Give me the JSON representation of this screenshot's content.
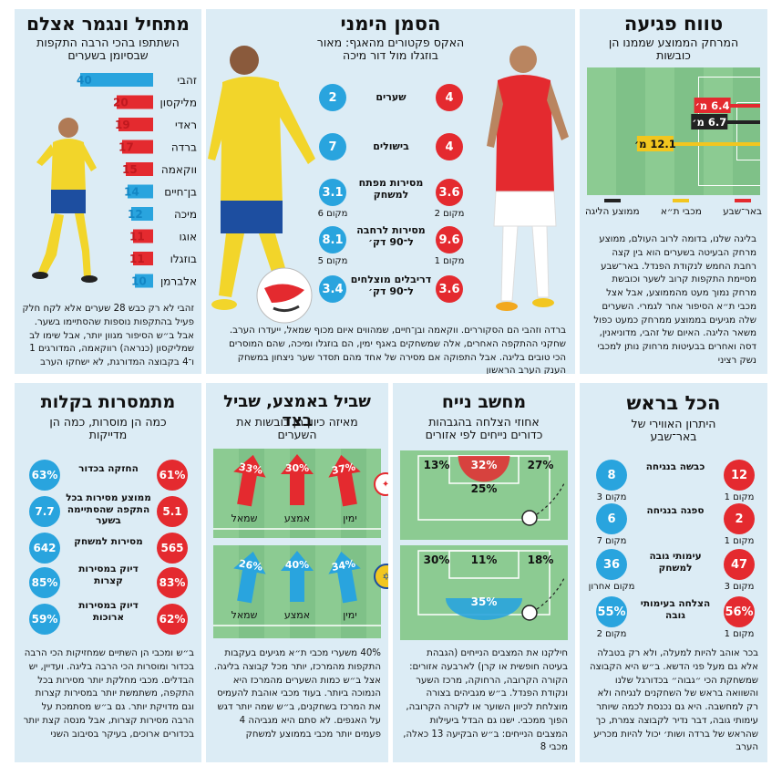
{
  "colors": {
    "red": "#e42a2f",
    "blue": "#29a4de",
    "yellow": "#f2c61f",
    "black": "#222222",
    "panel": "#dcecf5",
    "grass": "#7fc188"
  },
  "p1": {
    "title": "מתחיל ונגמר אצלם",
    "subtitle": "השתתפו בהכי הרבה התקפות שבסיומן בשערים",
    "text": "זהבי לא רק כבש 28 שערים אלא לקח חלק פעיל בהתקפות נוספות שהסתיימו בשער. אבל ב״ש הסיפור מגוון יותר, אבל שימו לב שמליקסון (כנראה) רווקאמה, המדורגים 1 ו־4 בקבוצה המדורגת, לא ישחקו הערב"
  },
  "p2": {
    "title": "הסמן הימני",
    "subtitle": "האקס פקטורים מהאגף: מאור בוזגלו מול דור מיכה",
    "stats": [
      {
        "label": "שערים",
        "red": "4",
        "blue": "2",
        "red_rank": "",
        "blue_rank": ""
      },
      {
        "label": "בישולים",
        "red": "4",
        "blue": "7",
        "red_rank": "",
        "blue_rank": ""
      },
      {
        "label": "מסירות מפתח למשחק",
        "red": "3.6",
        "blue": "3.1",
        "red_rank": "מקום 2",
        "blue_rank": "מקום 6"
      },
      {
        "label": "מסירות לרחבה ל־90 דק׳",
        "red": "9.6",
        "blue": "8.1",
        "red_rank": "מקום 1",
        "blue_rank": "מקום 5"
      },
      {
        "label": "דריבלים מוצלחים ל־90 דק׳",
        "red": "3.6",
        "blue": "3.4",
        "red_rank": "",
        "blue_rank": ""
      }
    ],
    "text": "ברדה וזהבי הם הסקוררים. ווקאמה ובן־חיים, שמהווים איום מכוף שמאל, ייעדרו הערב. שחקני ההתקפה האחרים, אלה שמשחקים באגף ימין, הם בוזגלו ומיכה, שהם המוסרים הכי טובים בליגה. אבל התפוקה אם מסירה של אחד מהם תסדר שער ניצחון במשחק הענק הערב הראשון"
  },
  "p3": {
    "title": "טווח פגיעה",
    "subtitle": "המרחק הממוצע שממנו הן כובשות",
    "legend": [
      "באר־שבע",
      "מכבי ת״א",
      "ממוצע הליגה"
    ],
    "text": "בליגה שלנו, בדומה לרוב העולם, ממוצע מרחק הבעיטה בשערים הוא בין קצה רחבת החמש לנקודת הפנדל. באר־שבע מסיימת התקפות קרוב לשער וכובשת מרחק נמוך מעט מהממוצע, אבל אצל מכבי ת״א הסיפור אחר לגמרי. השערים שלה מגיעים בממוצע ממרחק כמעט כפול משאר הליגה. האיום של זהבי, מדוניאנין, דסה ואחרים בבעיטות מרחוק נותן למכבי נשק רציני"
  },
  "p4": {
    "title": "מתמסרות בקלות",
    "subtitle": "כמה הן מוסרות, כמה הן מדייקות",
    "stats": [
      {
        "label": "החזקה בכדור",
        "red": "61%",
        "blue": "63%"
      },
      {
        "label": "ממוצע מסירות בכל התקפה שהסתיימה בשער",
        "red": "5.1",
        "blue": "7.7"
      },
      {
        "label": "מסירות למשחק",
        "red": "565",
        "blue": "642"
      },
      {
        "label": "דיוק במסירות קצרות",
        "red": "83%",
        "blue": "85%"
      },
      {
        "label": "דיוק במסירות ארוכות",
        "red": "62%",
        "blue": "59%"
      }
    ],
    "text": "ב״ש ומכבי הן השתיים שמחזיקות הכי הרבה בכדור ומוסרות הכי הרבה בליגה. ועדיין, יש הבדלים. מכבי מחלקת יותר מסירות בכל התקפה, משתמשת יותר במסירות קצרות וגם מדויקת יותר. גם ב״ש מסתמכת על הרבה מסירות קצרות, אבל מנסה קצת יותר בכדורים ארוכים, בעיקר בסיבוב השני"
  },
  "p5": {
    "title": "שביל באמצע, שביל בצד",
    "subtitle": "מאיזה כיוון הן כובשות את השערים",
    "lanes": [
      "ימין",
      "אמצע",
      "שמאל"
    ],
    "text": "40% משערי מכבי ת״א מגיעים בעקבות התקפות מהמרכז, יותר מכל קבוצה בליגה. אצל ב״ש כמות השערים מהמרכז היא הנמוכה ביותר. בעוד מכבי אוהבת להעמיס את המרכז בשחקנים, ב״ש שמה יותר דגש על האגפים. לא סתם היא מגביהה 4 פעמים יותר מכבי בממוצע למשחק"
  },
  "p6": {
    "title": "מחשב נייח",
    "subtitle": "אחוזי הצלחה בהגבהות כדורים נייחים לפי אזורים",
    "text": "חילקנו את המצבים הנייחים (הגבהת בעיטה חופשית או קרן) לארבעה אזורים: הקורה הקרובה, הרחוקה, מרכז השער ונקודת הפנדל. ב״ש מגביהים בצורה מוצלחת לכיוון השוער או לקורה הקרובה, הפוך ממכבי. ישנו גם הבדל ביעילות המצבים הנייחים: ב״ש הבקיעה 13 כאלה, מכבי 8"
  },
  "p7": {
    "title": "הכל בראש",
    "subtitle": "היתרון האווירי של באר־שבע",
    "stats": [
      {
        "label": "כבשה בנגיחה",
        "red": "12",
        "blue": "8",
        "red_rank": "מקום 1",
        "blue_rank": "מקום 3"
      },
      {
        "label": "ספגה בנגיחה",
        "red": "2",
        "blue": "6",
        "red_rank": "מקום 1",
        "blue_rank": "מקום 7"
      },
      {
        "label": "עימותי גובה למשחק",
        "red": "47",
        "blue": "36",
        "red_rank": "מקום 3",
        "blue_rank": "מקום אחרון"
      },
      {
        "label": "הצלחה בעימותי גובה",
        "red": "56%",
        "blue": "55%",
        "red_rank": "מקום 1",
        "blue_rank": "מקום 2"
      }
    ],
    "text": "בכר אוהב להיות למעלה, ולא רק בטבלה אלא גם מעל פני הדשא. ב״ש היא הקבוצה שמשחקת הכי ״גבוה״ בכדורגל שלנו והשוואה בראש של השחקנים לנגיחה ולא רק למחשבה. היא גם נכנסת לכמה שיותר עימותי גובה, דבר נדיר לקבוצה צמרת, כך שהראש של ברדה ושות׳ יכול להיות מכריע הערב"
  },
  "chart_data": [
    {
      "type": "bar",
      "title": "מתחיל ונגמר אצלם",
      "categories": [
        "זהבי",
        "מליקסון",
        "ראדי",
        "ברדה",
        "ווקאמה",
        "בן־חיים",
        "מיכה",
        "אוגו",
        "בוזגלו",
        "אלברמן"
      ],
      "values": [
        40,
        20,
        19,
        17,
        15,
        14,
        12,
        11,
        11,
        10
      ],
      "team_color": [
        "blue",
        "red",
        "red",
        "red",
        "red",
        "blue",
        "blue",
        "red",
        "red",
        "blue"
      ]
    },
    {
      "type": "bar",
      "title": "טווח פגיעה",
      "ylabel": "מ׳",
      "categories": [
        "מכבי ת״א",
        "ממוצע הליגה",
        "באר־שבע"
      ],
      "values": [
        12.1,
        6.7,
        6.4
      ],
      "labels": [
        "12.1 מ׳",
        "6.7 מ׳",
        "6.4 מ׳"
      ],
      "colors": [
        "#f2c61f",
        "#222222",
        "#e42a2f"
      ]
    },
    {
      "type": "bar",
      "title": "שביל באמצע, שביל בצד",
      "categories": [
        "ימין",
        "אמצע",
        "שמאל"
      ],
      "series": [
        {
          "values": [
            37,
            30,
            33
          ],
          "labels": [
            "37%",
            "30%",
            "33%"
          ],
          "color": "#e42a2f"
        },
        {
          "values": [
            34,
            40,
            26
          ],
          "labels": [
            "34%",
            "40%",
            "26%"
          ],
          "color": "#29a4de"
        }
      ]
    },
    {
      "type": "heatmap",
      "title": "מחשב נייח",
      "categories": [
        "קורה רחוקה",
        "קורה קרובה",
        "מרכז השער",
        "נקודת הפנדל"
      ],
      "series": [
        {
          "values": [
            13,
            27,
            32,
            25
          ],
          "labels": [
            "13%",
            "27%",
            "32%",
            "25%"
          ],
          "color": "#e42a2f"
        },
        {
          "values": [
            30,
            18,
            11,
            35
          ],
          "labels": [
            "30%",
            "18%",
            "11%",
            "35%"
          ],
          "color": "#29a4de"
        }
      ]
    }
  ]
}
